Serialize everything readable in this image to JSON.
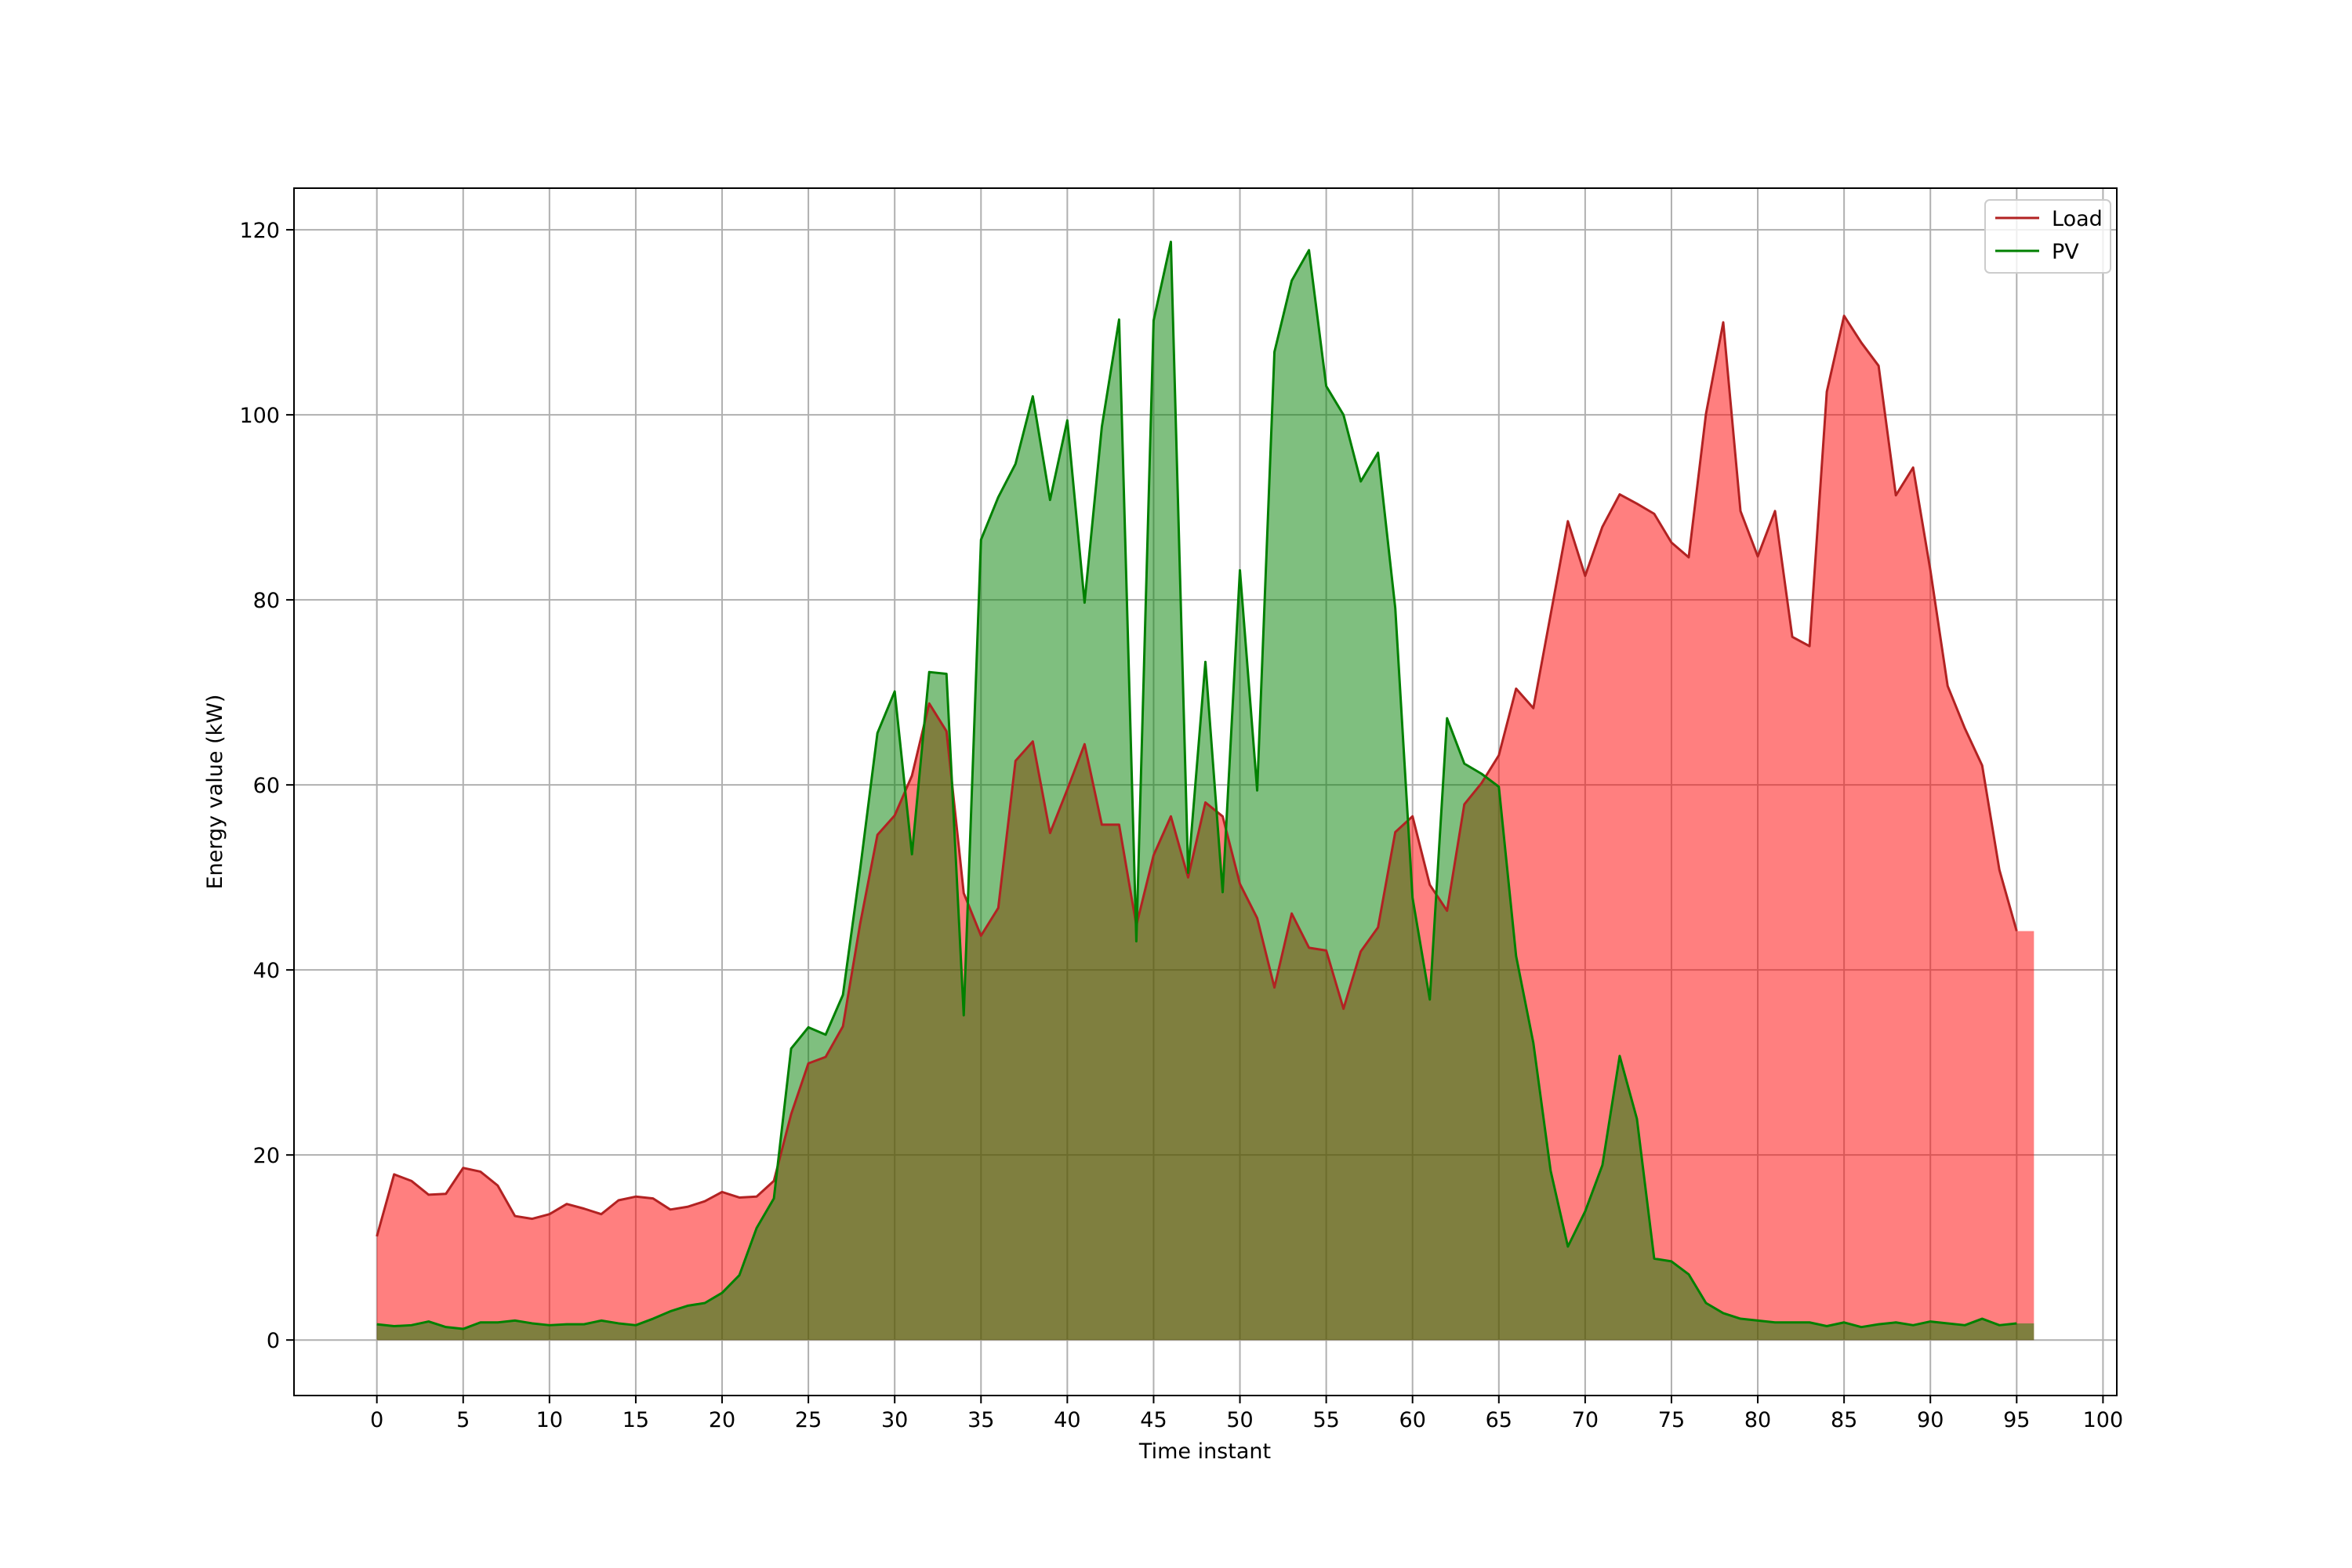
{
  "chart_data": {
    "type": "area",
    "title": "",
    "xlabel": "Time instant",
    "ylabel": "Energy value (kW)",
    "xlim": [
      -4.8,
      100.8
    ],
    "ylim": [
      -6,
      124.5
    ],
    "xticks": [
      0,
      5,
      10,
      15,
      20,
      25,
      30,
      35,
      40,
      45,
      50,
      55,
      60,
      65,
      70,
      75,
      80,
      85,
      90,
      95,
      100
    ],
    "yticks": [
      0,
      20,
      40,
      60,
      80,
      100,
      120
    ],
    "grid": true,
    "legend_position": "top-right",
    "step_end": true,
    "x": [
      0,
      1,
      2,
      3,
      4,
      5,
      6,
      7,
      8,
      9,
      10,
      11,
      12,
      13,
      14,
      15,
      16,
      17,
      18,
      19,
      20,
      21,
      22,
      23,
      24,
      25,
      26,
      27,
      28,
      29,
      30,
      31,
      32,
      33,
      34,
      35,
      36,
      37,
      38,
      39,
      40,
      41,
      42,
      43,
      44,
      45,
      46,
      47,
      48,
      49,
      50,
      51,
      52,
      53,
      54,
      55,
      56,
      57,
      58,
      59,
      60,
      61,
      62,
      63,
      64,
      65,
      66,
      67,
      68,
      69,
      70,
      71,
      72,
      73,
      74,
      75,
      76,
      77,
      78,
      79,
      80,
      81,
      82,
      83,
      84,
      85,
      86,
      87,
      88,
      89,
      90,
      91,
      92,
      93,
      94,
      95
    ],
    "series": [
      {
        "name": "Load",
        "line_color": "#b22222",
        "fill_color": "#ff0000",
        "values": [
          11.2,
          17.9,
          17.2,
          15.7,
          15.8,
          18.6,
          18.2,
          16.7,
          13.4,
          13.1,
          13.6,
          14.7,
          14.2,
          13.6,
          15.1,
          15.5,
          15.3,
          14.1,
          14.4,
          15.0,
          16.0,
          15.4,
          15.5,
          17.2,
          24.4,
          29.9,
          30.6,
          33.9,
          45.0,
          54.6,
          56.7,
          61.0,
          68.8,
          65.8,
          48.3,
          43.7,
          46.7,
          62.6,
          64.7,
          54.8,
          59.5,
          64.4,
          55.7,
          55.7,
          44.8,
          52.4,
          56.6,
          50.0,
          58.1,
          56.6,
          49.3,
          45.6,
          38.1,
          46.1,
          42.4,
          42.1,
          35.8,
          42.0,
          44.6,
          54.9,
          56.6,
          49.2,
          46.4,
          57.9,
          60.2,
          63.2,
          70.4,
          68.3,
          78.4,
          88.5,
          82.6,
          87.9,
          91.4,
          90.4,
          89.3,
          86.2,
          84.6,
          100.1,
          110.0,
          89.6,
          84.7,
          89.6,
          76.0,
          75.0,
          102.5,
          110.7,
          107.8,
          105.3,
          91.3,
          94.3,
          83.2,
          70.7,
          66.1,
          62.1,
          50.8,
          44.2
        ]
      },
      {
        "name": "PV",
        "line_color": "#008000",
        "fill_color": "#008000",
        "values": [
          1.7,
          1.5,
          1.6,
          2.0,
          1.4,
          1.2,
          1.9,
          1.9,
          2.1,
          1.8,
          1.6,
          1.7,
          1.7,
          2.1,
          1.8,
          1.6,
          2.3,
          3.1,
          3.7,
          4.0,
          5.1,
          7.0,
          12.1,
          15.3,
          31.5,
          33.8,
          33.0,
          37.3,
          50.9,
          65.6,
          70.1,
          52.5,
          72.2,
          72.0,
          35.1,
          86.5,
          91.1,
          94.7,
          102.0,
          90.8,
          99.4,
          79.7,
          98.7,
          110.3,
          43.1,
          110.2,
          118.7,
          50.5,
          73.3,
          48.4,
          83.2,
          59.4,
          106.8,
          114.5,
          117.8,
          103.1,
          100.0,
          92.8,
          95.9,
          79.1,
          47.8,
          36.8,
          67.2,
          62.3,
          61.2,
          59.8,
          41.5,
          32.1,
          18.3,
          10.1,
          13.9,
          18.9,
          30.7,
          23.9,
          8.8,
          8.5,
          7.1,
          4.0,
          2.9,
          2.3,
          2.1,
          1.9,
          1.9,
          1.9,
          1.5,
          1.9,
          1.4,
          1.7,
          1.9,
          1.6,
          2.0,
          1.8,
          1.6,
          2.3,
          1.6,
          1.8
        ]
      }
    ]
  }
}
